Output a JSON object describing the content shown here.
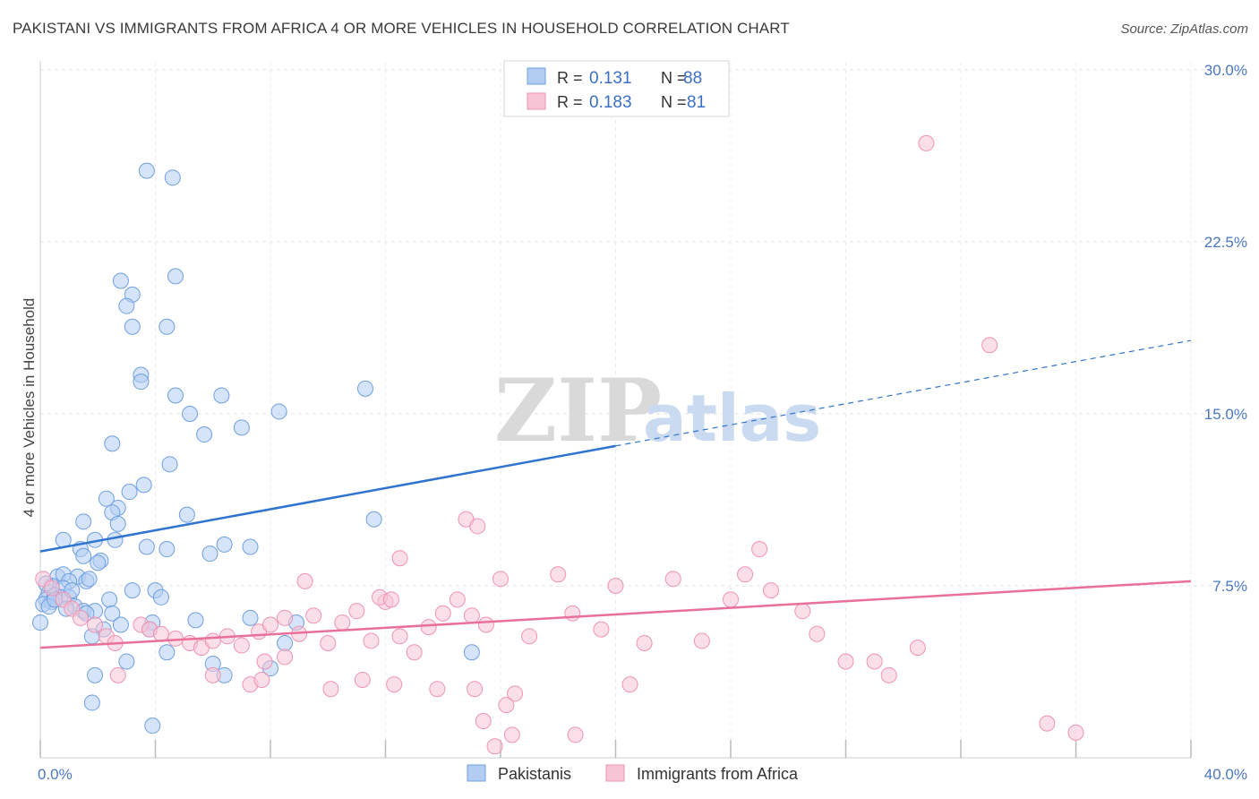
{
  "title": "PAKISTANI VS IMMIGRANTS FROM AFRICA 4 OR MORE VEHICLES IN HOUSEHOLD CORRELATION CHART",
  "source": "Source: ZipAtlas.com",
  "watermark": {
    "zip": "ZIP",
    "atlas": "atlas"
  },
  "legend_top": [
    {
      "r_label": "R =",
      "r_value": "0.131",
      "n_label": "N =",
      "n_value": "88"
    },
    {
      "r_label": "R =",
      "r_value": "0.183",
      "n_label": "N =",
      "n_value": "81"
    }
  ],
  "chart_data": {
    "type": "scatter",
    "ylabel": "4 or more Vehicles in Household",
    "xlim": [
      0,
      40
    ],
    "ylim": [
      0,
      30
    ],
    "x_tick_labels": [
      {
        "value": 0,
        "label": "0.0%"
      },
      {
        "value": 40,
        "label": "40.0%"
      }
    ],
    "y_tick_labels": [
      {
        "value": 7.5,
        "label": "7.5%"
      },
      {
        "value": 15,
        "label": "15.0%"
      },
      {
        "value": 22.5,
        "label": "22.5%"
      },
      {
        "value": 30,
        "label": "30.0%"
      }
    ],
    "grid": true,
    "legend_position": "top-center",
    "colors": {
      "pakistanis_fill": "#b3cdf2",
      "pakistanis_stroke": "#6f9fe0",
      "pakistanis_line": "#2f74d0",
      "africa_fill": "#f8c5d6",
      "africa_stroke": "#ee93b3",
      "africa_line": "#e8709a"
    },
    "series": [
      {
        "name": "Pakistanis",
        "r": 0.131,
        "n": 88,
        "trend": {
          "x0": 0,
          "y0": 9.0,
          "x1": 20,
          "y1": 13.6,
          "dash_to_x": 40,
          "dash_to_y": 18.2
        },
        "points": [
          [
            3.7,
            25.6
          ],
          [
            4.6,
            25.3
          ],
          [
            2.8,
            20.8
          ],
          [
            3.2,
            20.2
          ],
          [
            4.7,
            21.0
          ],
          [
            3.0,
            19.7
          ],
          [
            3.2,
            18.8
          ],
          [
            4.4,
            18.8
          ],
          [
            3.5,
            16.7
          ],
          [
            3.5,
            16.4
          ],
          [
            4.7,
            15.8
          ],
          [
            6.3,
            15.8
          ],
          [
            5.2,
            15.0
          ],
          [
            8.3,
            15.1
          ],
          [
            11.3,
            16.1
          ],
          [
            7.0,
            14.4
          ],
          [
            5.7,
            14.1
          ],
          [
            2.5,
            13.7
          ],
          [
            4.5,
            12.8
          ],
          [
            3.6,
            11.9
          ],
          [
            2.3,
            11.3
          ],
          [
            3.1,
            11.6
          ],
          [
            2.7,
            10.9
          ],
          [
            2.5,
            10.7
          ],
          [
            1.5,
            10.3
          ],
          [
            5.1,
            10.6
          ],
          [
            11.6,
            10.4
          ],
          [
            2.7,
            10.2
          ],
          [
            0.8,
            9.5
          ],
          [
            1.9,
            9.5
          ],
          [
            2.6,
            9.5
          ],
          [
            1.4,
            9.1
          ],
          [
            3.7,
            9.2
          ],
          [
            4.4,
            9.1
          ],
          [
            6.4,
            9.3
          ],
          [
            7.3,
            9.2
          ],
          [
            5.9,
            8.9
          ],
          [
            1.5,
            8.8
          ],
          [
            2.1,
            8.6
          ],
          [
            2.0,
            8.5
          ],
          [
            0.6,
            7.9
          ],
          [
            0.8,
            8.0
          ],
          [
            1.3,
            7.9
          ],
          [
            1.6,
            7.7
          ],
          [
            1.0,
            7.7
          ],
          [
            0.4,
            7.5
          ],
          [
            0.8,
            7.4
          ],
          [
            1.7,
            7.8
          ],
          [
            0.3,
            7.2
          ],
          [
            0.5,
            7.1
          ],
          [
            0.7,
            7.0
          ],
          [
            1.0,
            7.0
          ],
          [
            0.2,
            6.9
          ],
          [
            0.4,
            6.8
          ],
          [
            0.1,
            6.7
          ],
          [
            0.3,
            6.6
          ],
          [
            3.2,
            7.3
          ],
          [
            4.0,
            7.3
          ],
          [
            4.2,
            7.0
          ],
          [
            2.4,
            6.9
          ],
          [
            1.2,
            6.6
          ],
          [
            1.5,
            6.4
          ],
          [
            1.9,
            6.4
          ],
          [
            1.6,
            6.3
          ],
          [
            2.5,
            6.3
          ],
          [
            0.9,
            6.5
          ],
          [
            5.4,
            6.0
          ],
          [
            7.3,
            6.1
          ],
          [
            8.9,
            5.9
          ],
          [
            3.9,
            5.9
          ],
          [
            0.0,
            5.9
          ],
          [
            3.8,
            5.6
          ],
          [
            2.2,
            5.6
          ],
          [
            1.8,
            5.3
          ],
          [
            2.8,
            5.8
          ],
          [
            8.5,
            5.0
          ],
          [
            4.4,
            4.6
          ],
          [
            6.0,
            4.1
          ],
          [
            3.0,
            4.2
          ],
          [
            8.0,
            3.9
          ],
          [
            1.9,
            3.6
          ],
          [
            6.4,
            3.6
          ],
          [
            15.0,
            4.6
          ],
          [
            1.8,
            2.4
          ],
          [
            3.9,
            1.4
          ],
          [
            0.2,
            7.6
          ],
          [
            0.5,
            6.9
          ],
          [
            1.1,
            7.3
          ]
        ]
      },
      {
        "name": "Immigrants from Africa",
        "r": 0.183,
        "n": 81,
        "trend": {
          "x0": 0,
          "y0": 4.8,
          "x1": 40,
          "y1": 7.7
        },
        "points": [
          [
            30.8,
            26.8
          ],
          [
            33.0,
            18.0
          ],
          [
            0.1,
            7.8
          ],
          [
            0.4,
            7.4
          ],
          [
            0.8,
            6.9
          ],
          [
            1.1,
            6.5
          ],
          [
            1.4,
            6.1
          ],
          [
            1.9,
            5.8
          ],
          [
            2.3,
            5.3
          ],
          [
            2.6,
            5.0
          ],
          [
            3.5,
            5.8
          ],
          [
            3.8,
            5.6
          ],
          [
            4.2,
            5.4
          ],
          [
            4.7,
            5.2
          ],
          [
            5.2,
            5.0
          ],
          [
            5.6,
            4.8
          ],
          [
            6.0,
            5.1
          ],
          [
            6.5,
            5.3
          ],
          [
            7.0,
            4.9
          ],
          [
            7.6,
            5.5
          ],
          [
            8.0,
            5.8
          ],
          [
            8.5,
            6.1
          ],
          [
            9.0,
            5.4
          ],
          [
            9.5,
            6.2
          ],
          [
            10.0,
            5.0
          ],
          [
            10.5,
            5.9
          ],
          [
            11.0,
            6.4
          ],
          [
            11.5,
            5.1
          ],
          [
            12.0,
            6.8
          ],
          [
            12.5,
            5.3
          ],
          [
            13.0,
            4.6
          ],
          [
            13.5,
            5.7
          ],
          [
            14.0,
            6.3
          ],
          [
            14.5,
            6.9
          ],
          [
            15.0,
            6.2
          ],
          [
            15.5,
            5.8
          ],
          [
            16.0,
            7.8
          ],
          [
            17.0,
            5.3
          ],
          [
            18.0,
            8.0
          ],
          [
            18.5,
            6.3
          ],
          [
            19.5,
            5.6
          ],
          [
            20.0,
            7.5
          ],
          [
            21.0,
            5.0
          ],
          [
            22.0,
            7.8
          ],
          [
            23.0,
            5.1
          ],
          [
            24.0,
            6.9
          ],
          [
            24.5,
            8.0
          ],
          [
            25.0,
            9.1
          ],
          [
            26.5,
            6.4
          ],
          [
            27.0,
            5.4
          ],
          [
            28.0,
            4.2
          ],
          [
            29.0,
            4.2
          ],
          [
            29.5,
            3.6
          ],
          [
            30.5,
            4.8
          ],
          [
            35.0,
            1.5
          ],
          [
            36.0,
            1.1
          ],
          [
            14.8,
            10.4
          ],
          [
            15.2,
            10.1
          ],
          [
            12.5,
            8.7
          ],
          [
            9.2,
            7.7
          ],
          [
            11.8,
            7.0
          ],
          [
            12.2,
            6.9
          ],
          [
            7.8,
            4.2
          ],
          [
            8.5,
            4.4
          ],
          [
            6.0,
            3.6
          ],
          [
            7.3,
            3.2
          ],
          [
            7.7,
            3.4
          ],
          [
            10.1,
            3.0
          ],
          [
            11.2,
            3.4
          ],
          [
            12.3,
            3.2
          ],
          [
            13.8,
            3.0
          ],
          [
            15.1,
            3.0
          ],
          [
            16.5,
            2.8
          ],
          [
            16.2,
            2.3
          ],
          [
            15.4,
            1.6
          ],
          [
            16.4,
            1.0
          ],
          [
            18.6,
            1.0
          ],
          [
            15.8,
            0.5
          ],
          [
            20.5,
            3.2
          ],
          [
            2.7,
            3.6
          ],
          [
            25.4,
            7.3
          ]
        ]
      }
    ]
  },
  "legend_bottom": [
    {
      "label": "Pakistanis"
    },
    {
      "label": "Immigrants from Africa"
    }
  ]
}
